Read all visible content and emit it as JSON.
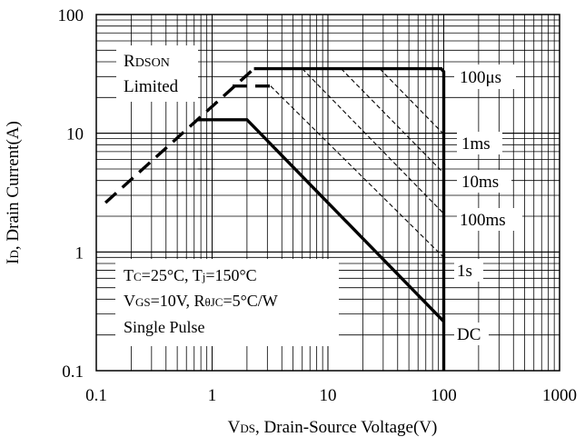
{
  "chart_data": {
    "type": "line",
    "title": "",
    "x_axis": {
      "label_main": "V",
      "label_sub": "DS",
      "label_rest": ", Drain-Source Voltage(V)",
      "scale": "log",
      "range": [
        0.1,
        1000
      ],
      "ticks": [
        {
          "value": 0.1,
          "label": "0.1"
        },
        {
          "value": 1,
          "label": "1"
        },
        {
          "value": 10,
          "label": "10"
        },
        {
          "value": 100,
          "label": "100"
        },
        {
          "value": 1000,
          "label": "1000"
        }
      ]
    },
    "y_axis": {
      "label_main": "I",
      "label_sub": "D",
      "label_rest": ", Drain Current(A)",
      "scale": "log",
      "range": [
        0.1,
        100
      ],
      "ticks": [
        {
          "value": 0.1,
          "label": "0.1"
        },
        {
          "value": 1,
          "label": "1"
        },
        {
          "value": 10,
          "label": "10"
        },
        {
          "value": 100,
          "label": "100"
        }
      ]
    },
    "grid": true,
    "series": [
      {
        "name": "100μs",
        "style": "solid-thick",
        "points": [
          [
            2.3,
            35
          ],
          [
            95,
            35
          ],
          [
            100,
            33
          ],
          [
            100,
            0.1
          ]
        ]
      },
      {
        "name": "DC",
        "style": "solid-thick",
        "points": [
          [
            0.75,
            13
          ],
          [
            2,
            13
          ],
          [
            100,
            0.26
          ]
        ]
      },
      {
        "name": "R_DSON Limited",
        "style": "dashed-thick",
        "points": [
          [
            0.12,
            2.6
          ],
          [
            2.3,
            35
          ]
        ]
      },
      {
        "name": "1ms",
        "style": "dashed-thick",
        "points": [
          [
            1.5,
            25
          ],
          [
            3.2,
            25
          ]
        ]
      },
      {
        "name": "",
        "style": "dashed-thin",
        "points": [
          [
            3.2,
            25
          ],
          [
            100,
            0.9
          ]
        ]
      },
      {
        "name": "",
        "style": "dashed-thin",
        "points": [
          [
            6,
            35
          ],
          [
            100,
            2.1
          ]
        ]
      },
      {
        "name": "",
        "style": "dashed-thin",
        "points": [
          [
            13,
            35
          ],
          [
            100,
            4.6
          ]
        ]
      },
      {
        "name": "",
        "style": "dashed-thin",
        "points": [
          [
            28,
            35
          ],
          [
            100,
            9.8
          ]
        ]
      },
      {
        "name": "",
        "style": "dashed-thin",
        "points": [
          [
            0.75,
            5
          ],
          [
            1.05,
            5
          ]
        ]
      }
    ],
    "annotations": {
      "rdson": {
        "main": "R",
        "sub": "DSON",
        "line2": "Limited"
      },
      "cond1": {
        "t": "T",
        "c_sub": "C",
        "mid": "=25°C, T",
        "j_sub": "j",
        "end": "=150°C"
      },
      "cond2": {
        "v": "V",
        "gs_sub": "GS",
        "mid": "=10V, R",
        "thjc_sub": "θJC",
        "end": "=5°C/W"
      },
      "cond3": "Single Pulse",
      "curve_labels": [
        {
          "id": "100us",
          "text": "100μs"
        },
        {
          "id": "1ms",
          "text": "1ms"
        },
        {
          "id": "10ms",
          "text": "10ms"
        },
        {
          "id": "100ms",
          "text": "100ms"
        },
        {
          "id": "1s",
          "text": "1s"
        },
        {
          "id": "dc",
          "text": "DC"
        }
      ]
    }
  }
}
